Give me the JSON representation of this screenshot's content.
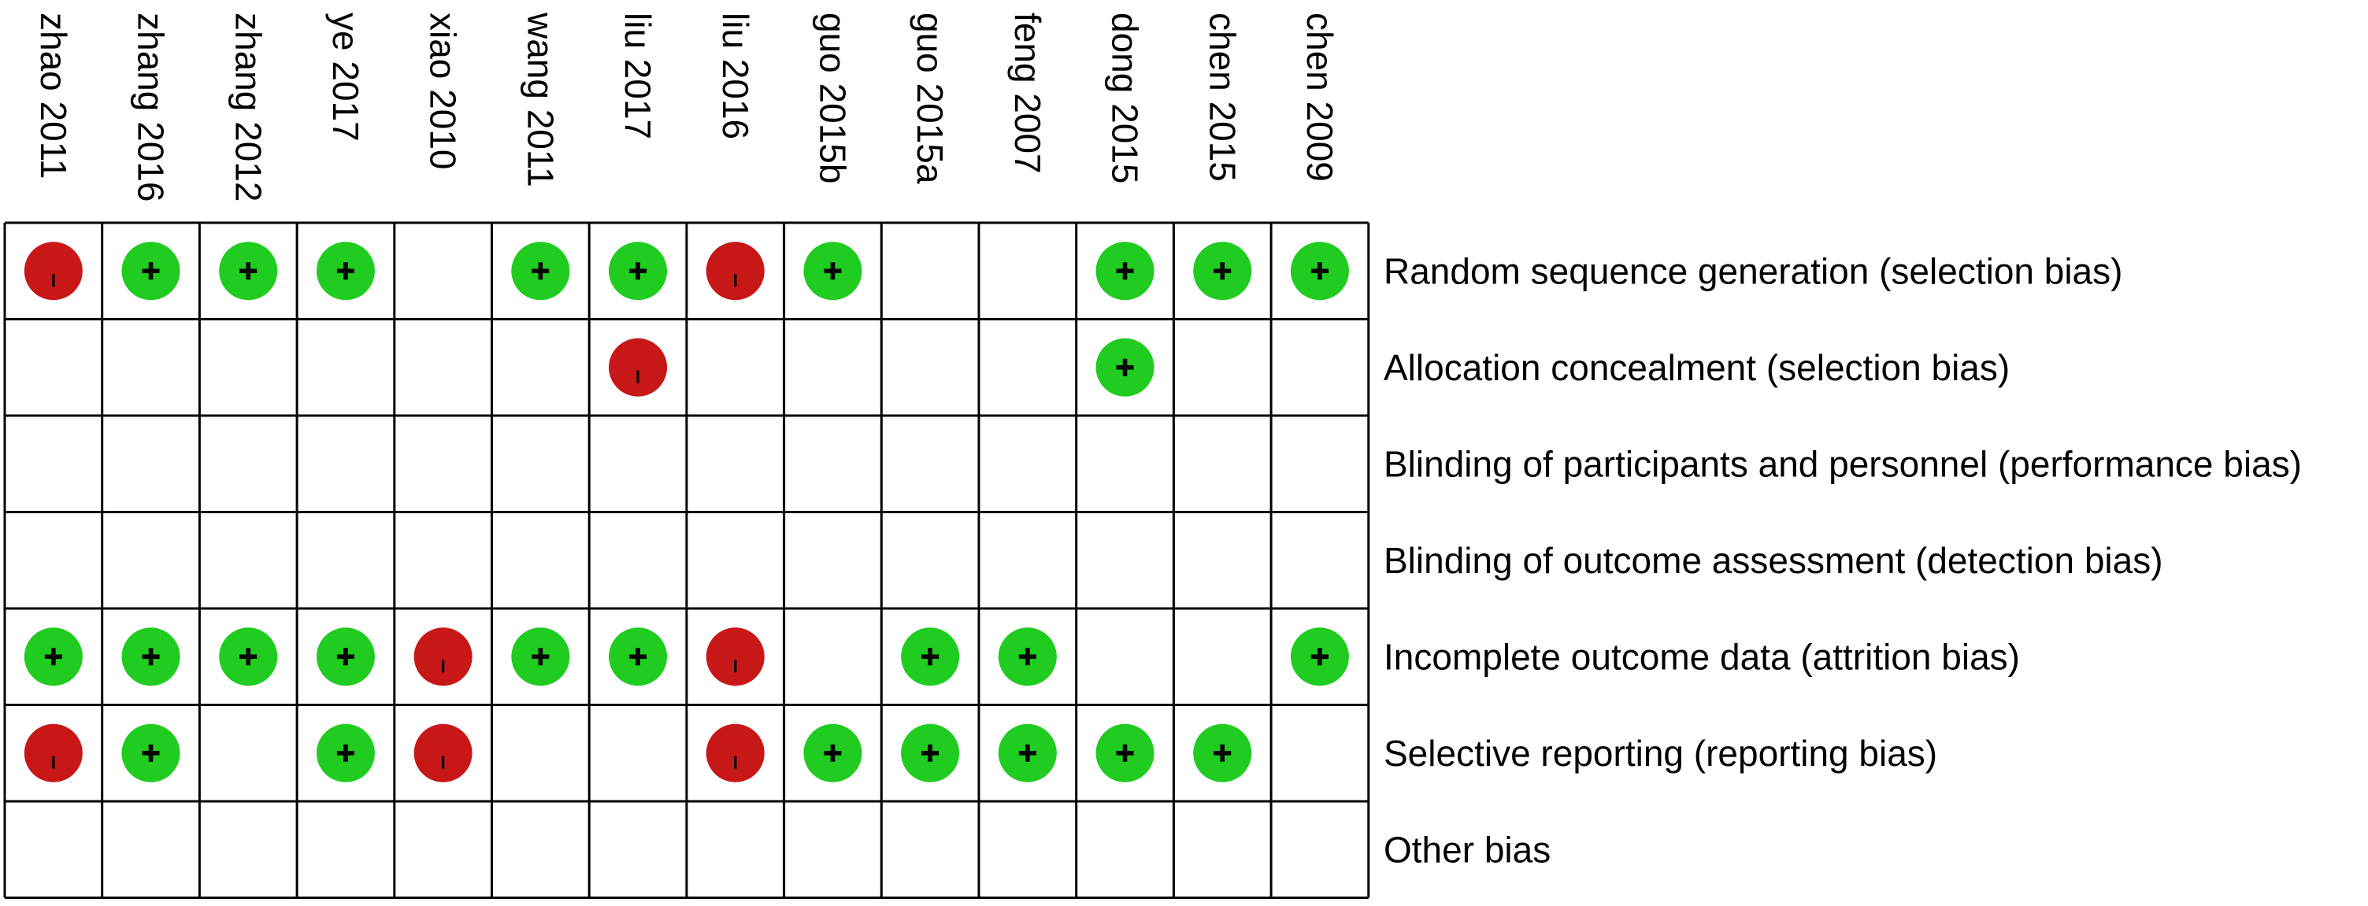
{
  "colors": {
    "low_risk": "#1fcc1f",
    "high_risk": "#c81717",
    "symbol": "#000000",
    "grid": "#000000",
    "background": "#ffffff"
  },
  "legend_symbols": {
    "low": "+",
    "high": "−"
  },
  "chart_data": {
    "type": "table",
    "title": "",
    "studies": [
      "zhao 2011",
      "zhang 2016",
      "zhang 2012",
      "ye 2017",
      "xiao 2010",
      "wang 2011",
      "liu 2017",
      "liu 2016",
      "guo 2015b",
      "guo 2015a",
      "feng 2007",
      "dong 2015",
      "chen 2015",
      "chen 2009"
    ],
    "domains": [
      "Random sequence generation (selection bias)",
      "Allocation concealment (selection bias)",
      "Blinding of participants and personnel (performance bias)",
      "Blinding of outcome assessment (detection bias)",
      "Incomplete outcome data (attrition bias)",
      "Selective reporting (reporting bias)",
      "Other bias"
    ],
    "judgements": [
      [
        "high",
        "low",
        "low",
        "low",
        "",
        "low",
        "low",
        "high",
        "low",
        "",
        "",
        "low",
        "low",
        "low"
      ],
      [
        "",
        "",
        "",
        "",
        "",
        "",
        "high",
        "",
        "",
        "",
        "",
        "low",
        "",
        ""
      ],
      [
        "",
        "",
        "",
        "",
        "",
        "",
        "",
        "",
        "",
        "",
        "",
        "",
        "",
        ""
      ],
      [
        "",
        "",
        "",
        "",
        "",
        "",
        "",
        "",
        "",
        "",
        "",
        "",
        "",
        ""
      ],
      [
        "low",
        "low",
        "low",
        "low",
        "high",
        "low",
        "low",
        "high",
        "",
        "low",
        "low",
        "",
        "",
        "low"
      ],
      [
        "high",
        "low",
        "",
        "low",
        "high",
        "",
        "",
        "high",
        "low",
        "low",
        "low",
        "low",
        "low",
        ""
      ],
      [
        "",
        "",
        "",
        "",
        "",
        "",
        "",
        "",
        "",
        "",
        "",
        "",
        "",
        ""
      ]
    ]
  }
}
